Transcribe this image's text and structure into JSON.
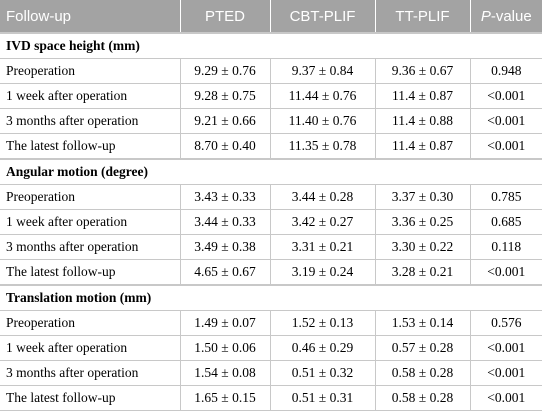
{
  "header": [
    "Follow-up",
    "PTED",
    "CBT-PLIF",
    "TT-PLIF",
    [
      "P",
      "-value"
    ]
  ],
  "sections": [
    {
      "title": "IVD space height (mm)",
      "rows": [
        [
          "Preoperation",
          "9.29 ± 0.76",
          "9.37 ± 0.84",
          "9.36 ± 0.67",
          "0.948"
        ],
        [
          "1 week after operation",
          "9.28 ± 0.75",
          "11.44 ± 0.76",
          "11.4 ± 0.87",
          "<0.001"
        ],
        [
          "3 months after operation",
          "9.21 ± 0.66",
          "11.40 ± 0.76",
          "11.4 ± 0.88",
          "<0.001"
        ],
        [
          "The latest follow-up",
          "8.70 ± 0.40",
          "11.35 ± 0.78",
          "11.4 ± 0.87",
          "<0.001"
        ]
      ]
    },
    {
      "title": "Angular motion (degree)",
      "rows": [
        [
          "Preoperation",
          "3.43 ± 0.33",
          "3.44 ± 0.28",
          "3.37 ± 0.30",
          "0.785"
        ],
        [
          "1 week after operation",
          "3.44 ± 0.33",
          "3.42 ± 0.27",
          "3.36 ± 0.25",
          "0.685"
        ],
        [
          "3 months after operation",
          "3.49 ± 0.38",
          "3.31 ± 0.21",
          "3.30 ± 0.22",
          "0.118"
        ],
        [
          "The latest follow-up",
          "4.65 ± 0.67",
          "3.19 ± 0.24",
          "3.28 ± 0.21",
          "<0.001"
        ]
      ]
    },
    {
      "title": "Translation motion (mm)",
      "rows": [
        [
          "Preoperation",
          "1.49 ± 0.07",
          "1.52 ± 0.13",
          "1.53 ± 0.14",
          "0.576"
        ],
        [
          "1 week after operation",
          "1.50 ± 0.06",
          "0.46 ± 0.29",
          "0.57 ± 0.28",
          "<0.001"
        ],
        [
          "3 months after operation",
          "1.54 ± 0.08",
          "0.51 ± 0.32",
          "0.58 ± 0.28",
          "<0.001"
        ],
        [
          "The latest follow-up",
          "1.65 ± 0.15",
          "0.51 ± 0.31",
          "0.58 ± 0.28",
          "<0.001"
        ]
      ]
    }
  ]
}
